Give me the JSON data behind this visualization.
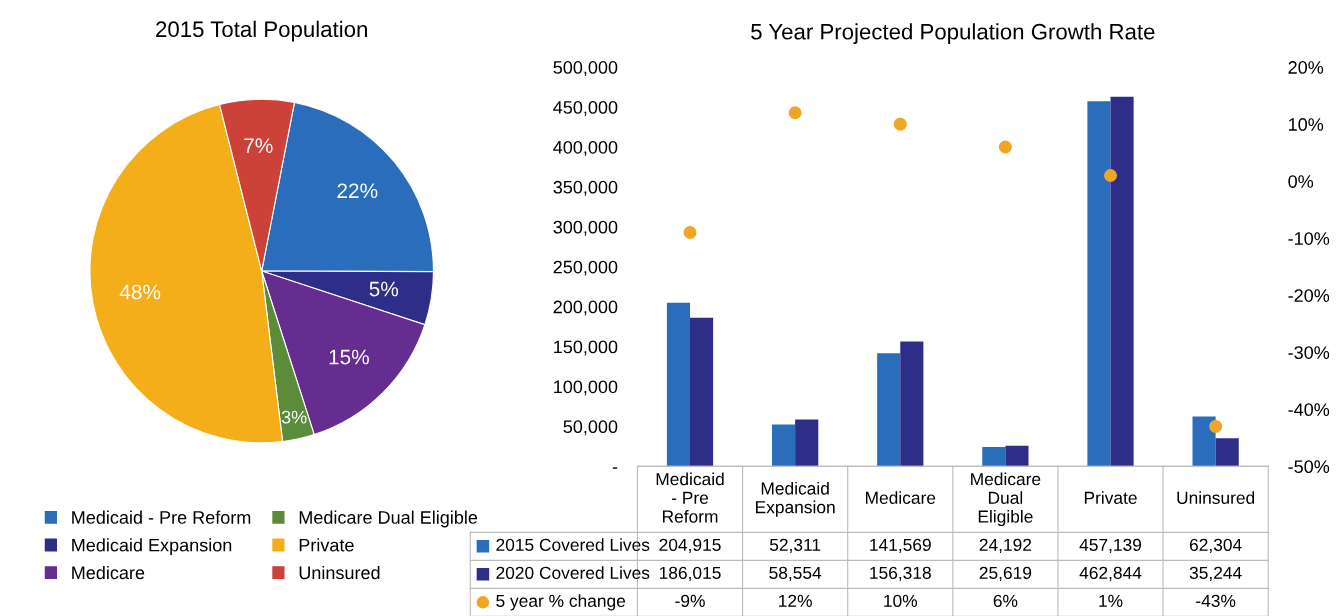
{
  "chart_data": [
    {
      "type": "pie",
      "title": "2015 Total Population",
      "categories": [
        "Medicaid - Pre Reform",
        "Medicaid Expansion",
        "Medicare",
        "Medicare Dual Eligible",
        "Private",
        "Uninsured"
      ],
      "values": [
        22,
        5,
        15,
        3,
        48,
        7
      ],
      "value_labels": [
        "22%",
        "5%",
        "15%",
        "3%",
        "48%",
        "7%"
      ],
      "colors": [
        "#2a6ebb",
        "#2e2d88",
        "#662d91",
        "#5a8c3c",
        "#f4ae1a",
        "#cc4138"
      ],
      "legend": "bottom"
    },
    {
      "type": "bar",
      "title": "5 Year Projected Population Growth Rate",
      "categories": [
        "Medicaid - Pre Reform",
        "Medicaid Expansion",
        "Medicare",
        "Medicare Dual Eligible",
        "Private",
        "Uninsured"
      ],
      "series": [
        {
          "name": "2015 Covered Lives",
          "color": "#2a6ebb",
          "values": [
            204915,
            52311,
            141569,
            24192,
            457139,
            62304
          ],
          "value_labels": [
            "204,915",
            "52,311",
            "141,569",
            "24,192",
            "457,139",
            "62,304"
          ]
        },
        {
          "name": "2020 Covered Lives",
          "color": "#2e2d88",
          "values": [
            186015,
            58554,
            156318,
            25619,
            462844,
            35244
          ],
          "value_labels": [
            "186,015",
            "58,554",
            "156,318",
            "25,619",
            "462,844",
            "35,244"
          ]
        },
        {
          "name": "5 year % change",
          "type": "scatter",
          "axis": "y2",
          "marker": "circle",
          "color": "#f0a623",
          "values": [
            -9,
            12,
            10,
            6,
            1,
            -43
          ],
          "value_labels": [
            "-9%",
            "12%",
            "10%",
            "6%",
            "1%",
            "-43%"
          ]
        }
      ],
      "ylim": [
        0,
        500000
      ],
      "yticks": [
        {
          "value": 0,
          "label": "-"
        },
        {
          "value": 50000,
          "label": "50,000"
        },
        {
          "value": 100000,
          "label": "100,000"
        },
        {
          "value": 150000,
          "label": "150,000"
        },
        {
          "value": 200000,
          "label": "200,000"
        },
        {
          "value": 250000,
          "label": "250,000"
        },
        {
          "value": 300000,
          "label": "300,000"
        },
        {
          "value": 350000,
          "label": "350,000"
        },
        {
          "value": 400000,
          "label": "400,000"
        },
        {
          "value": 450000,
          "label": "450,000"
        },
        {
          "value": 500000,
          "label": "500,000"
        }
      ],
      "y2lim": [
        -50,
        20
      ],
      "y2ticks": [
        {
          "value": -50,
          "label": "-50%"
        },
        {
          "value": -40,
          "label": "-40%"
        },
        {
          "value": -30,
          "label": "-30%"
        },
        {
          "value": -20,
          "label": "-20%"
        },
        {
          "value": -10,
          "label": "-10%"
        },
        {
          "value": 0,
          "label": "0%"
        },
        {
          "value": 10,
          "label": "10%"
        },
        {
          "value": 20,
          "label": "20%"
        }
      ],
      "grid": false,
      "legend": "bottom"
    }
  ]
}
